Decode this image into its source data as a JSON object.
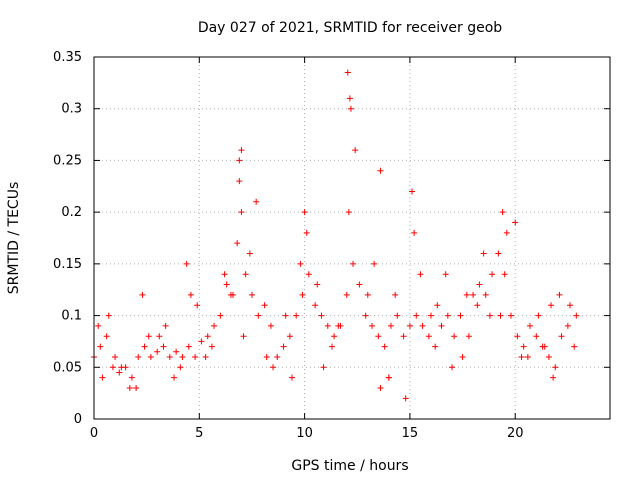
{
  "chart_data": {
    "type": "scatter",
    "title": "Day 027 of 2021, SRMTID for receiver geob",
    "xlabel": "GPS time / hours",
    "ylabel": "SRMTID / TECUs",
    "xlim": [
      0,
      24.5
    ],
    "ylim": [
      0,
      0.35
    ],
    "xticks": [
      0,
      5,
      10,
      15,
      20
    ],
    "xtick_labels": [
      "0",
      "5",
      "10",
      "15",
      "20"
    ],
    "yticks": [
      0,
      0.05,
      0.1,
      0.15,
      0.2,
      0.25,
      0.3,
      0.35
    ],
    "ytick_labels": [
      "0",
      "0.05",
      "0.1",
      "0.15",
      "0.2",
      "0.25",
      "0.3",
      "0.35"
    ],
    "grid": true,
    "marker": "+",
    "series": [
      {
        "name": "SRMTID",
        "color": "#ff0000",
        "x": [
          0.0,
          0.3,
          0.6,
          0.9,
          1.2,
          1.5,
          1.8,
          2.1,
          2.4,
          2.7,
          3.0,
          3.3,
          3.6,
          3.9,
          4.2,
          4.5,
          4.8,
          5.1,
          5.4,
          5.7,
          6.0,
          6.3,
          6.6,
          6.8,
          7.0,
          7.2,
          7.5,
          7.8,
          8.1,
          8.4,
          8.7,
          9.0,
          9.3,
          9.6,
          9.9,
          10.2,
          10.5,
          10.8,
          11.1,
          11.4,
          11.7,
          12.0,
          12.1,
          12.3,
          12.6,
          12.9,
          13.2,
          13.5,
          13.8,
          14.1,
          14.4,
          14.7,
          15.0,
          15.3,
          15.6,
          15.9,
          16.2,
          16.5,
          16.8,
          17.1,
          17.4,
          17.7,
          18.0,
          18.3,
          18.6,
          18.9,
          19.2,
          19.5,
          19.8,
          20.1,
          20.4,
          20.7,
          21.0,
          21.3,
          21.6,
          21.9,
          22.2,
          22.5,
          22.8,
          0.2,
          0.7,
          1.3,
          2.0,
          2.6,
          3.4,
          4.1,
          4.9,
          5.6,
          6.2,
          6.9,
          7.4,
          8.2,
          9.1,
          9.8,
          10.6,
          11.3,
          12.2,
          13.0,
          13.6,
          14.3,
          15.2,
          16.0,
          16.7,
          17.5,
          18.2,
          18.8,
          19.6,
          20.3,
          21.1,
          21.8,
          22.6,
          0.4,
          1.0,
          1.7,
          2.3,
          3.1,
          3.8,
          4.6,
          5.3,
          6.5,
          7.1,
          7.7,
          8.5,
          9.4,
          10.1,
          10.9,
          11.6,
          12.4,
          13.3,
          14.0,
          14.8,
          15.5,
          16.3,
          17.0,
          17.8,
          18.5,
          19.3,
          20.0,
          20.6,
          21.4,
          22.1,
          22.9,
          12.05,
          12.15,
          7.0,
          6.9,
          19.4,
          15.1,
          13.6,
          10.0,
          4.4,
          21.7,
          14.0
        ],
        "y": [
          0.06,
          0.07,
          0.08,
          0.05,
          0.045,
          0.05,
          0.04,
          0.06,
          0.07,
          0.06,
          0.065,
          0.07,
          0.06,
          0.065,
          0.06,
          0.07,
          0.06,
          0.075,
          0.08,
          0.09,
          0.1,
          0.13,
          0.12,
          0.17,
          0.2,
          0.14,
          0.12,
          0.1,
          0.11,
          0.09,
          0.06,
          0.07,
          0.08,
          0.1,
          0.12,
          0.14,
          0.11,
          0.1,
          0.09,
          0.08,
          0.09,
          0.12,
          0.2,
          0.15,
          0.13,
          0.1,
          0.09,
          0.08,
          0.07,
          0.09,
          0.1,
          0.08,
          0.09,
          0.1,
          0.09,
          0.08,
          0.07,
          0.09,
          0.1,
          0.08,
          0.1,
          0.12,
          0.12,
          0.13,
          0.12,
          0.14,
          0.16,
          0.14,
          0.1,
          0.08,
          0.07,
          0.09,
          0.08,
          0.07,
          0.06,
          0.05,
          0.08,
          0.09,
          0.07,
          0.09,
          0.1,
          0.05,
          0.03,
          0.08,
          0.09,
          0.05,
          0.11,
          0.07,
          0.14,
          0.23,
          0.16,
          0.06,
          0.1,
          0.15,
          0.13,
          0.07,
          0.3,
          0.12,
          0.03,
          0.12,
          0.18,
          0.1,
          0.14,
          0.06,
          0.11,
          0.1,
          0.18,
          0.06,
          0.1,
          0.04,
          0.11,
          0.04,
          0.06,
          0.03,
          0.12,
          0.08,
          0.04,
          0.12,
          0.06,
          0.12,
          0.08,
          0.21,
          0.05,
          0.04,
          0.18,
          0.05,
          0.09,
          0.26,
          0.15,
          0.04,
          0.02,
          0.14,
          0.11,
          0.05,
          0.08,
          0.16,
          0.1,
          0.19,
          0.06,
          0.07,
          0.12,
          0.1,
          0.335,
          0.31,
          0.26,
          0.25,
          0.2,
          0.22,
          0.24,
          0.2,
          0.15,
          0.11,
          0.04
        ]
      }
    ]
  }
}
